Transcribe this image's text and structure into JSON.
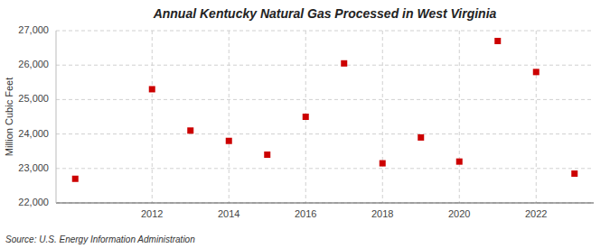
{
  "chart_data": {
    "type": "scatter",
    "title": "Annual Kentucky Natural Gas Processed in West Virginia",
    "y_label": "Million Cubic Feet",
    "source": "Source: U.S. Energy Information Administration",
    "x": [
      2010,
      2012,
      2013,
      2014,
      2015,
      2016,
      2017,
      2018,
      2019,
      2020,
      2021,
      2022,
      2023
    ],
    "values": [
      22700,
      25300,
      24100,
      23800,
      23400,
      24500,
      26050,
      23150,
      23900,
      23200,
      26700,
      25800,
      22850
    ],
    "color": "#cc0000",
    "marker": "square",
    "xlim": [
      2009.5,
      2023.5
    ],
    "xticks": [
      2012,
      2014,
      2016,
      2018,
      2020,
      2022
    ],
    "ylim": [
      22000,
      27000
    ],
    "yticks": [
      {
        "value": 22000,
        "label": "22,000"
      },
      {
        "value": 23000,
        "label": "23,000"
      },
      {
        "value": 24000,
        "label": "24,000"
      },
      {
        "value": 25000,
        "label": "25,000"
      },
      {
        "value": 26000,
        "label": "26,000"
      },
      {
        "value": 27000,
        "label": "27,000"
      }
    ],
    "grid": true
  }
}
